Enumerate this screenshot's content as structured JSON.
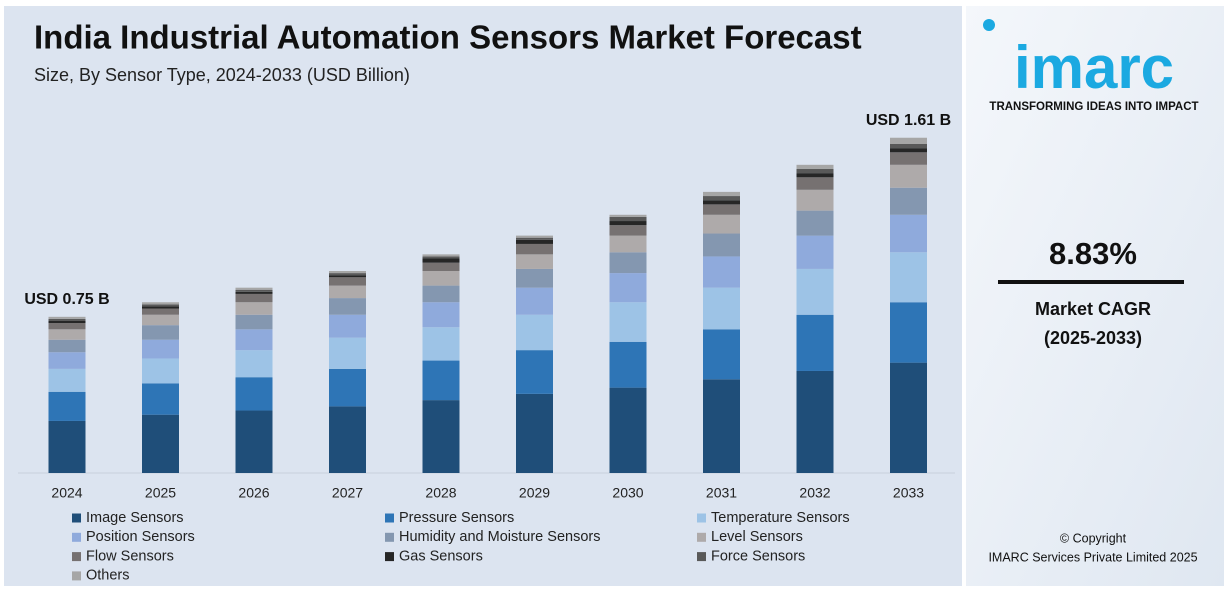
{
  "chart_data": {
    "type": "stacked_bar",
    "title": "India Industrial Automation Sensors Market Forecast",
    "subtitle": "Size, By Sensor Type, 2024-2033 (USD Billion)",
    "categories": [
      "2024",
      "2025",
      "2026",
      "2027",
      "2028",
      "2029",
      "2030",
      "2031",
      "2032",
      "2033"
    ],
    "series": [
      {
        "name": "Image Sensors",
        "color": "#1f4e79",
        "values": [
          0.25,
          0.28,
          0.3,
          0.32,
          0.35,
          0.38,
          0.41,
          0.45,
          0.49,
          0.53
        ]
      },
      {
        "name": "Pressure Sensors",
        "color": "#2e75b6",
        "values": [
          0.14,
          0.15,
          0.16,
          0.18,
          0.19,
          0.21,
          0.22,
          0.24,
          0.27,
          0.29
        ]
      },
      {
        "name": "Temperature Sensors",
        "color": "#9dc3e6",
        "values": [
          0.11,
          0.12,
          0.13,
          0.15,
          0.16,
          0.17,
          0.19,
          0.2,
          0.22,
          0.24
        ]
      },
      {
        "name": "Position Sensors",
        "color": "#8faadc",
        "values": [
          0.08,
          0.09,
          0.1,
          0.11,
          0.12,
          0.13,
          0.14,
          0.15,
          0.16,
          0.18
        ]
      },
      {
        "name": "Humidity and Moisture Sensors",
        "color": "#8497b0",
        "values": [
          0.06,
          0.07,
          0.07,
          0.08,
          0.08,
          0.09,
          0.1,
          0.11,
          0.12,
          0.13
        ]
      },
      {
        "name": "Level Sensors",
        "color": "#aeaaaa",
        "values": [
          0.05,
          0.05,
          0.06,
          0.06,
          0.07,
          0.07,
          0.08,
          0.09,
          0.1,
          0.11
        ]
      },
      {
        "name": "Flow Sensors",
        "color": "#767171",
        "values": [
          0.03,
          0.03,
          0.04,
          0.04,
          0.04,
          0.05,
          0.05,
          0.05,
          0.06,
          0.06
        ]
      },
      {
        "name": "Gas Sensors",
        "color": "#262626",
        "values": [
          0.01,
          0.01,
          0.01,
          0.01,
          0.02,
          0.02,
          0.02,
          0.02,
          0.02,
          0.02
        ]
      },
      {
        "name": "Force Sensors",
        "color": "#595959",
        "values": [
          0.01,
          0.01,
          0.01,
          0.01,
          0.01,
          0.01,
          0.02,
          0.02,
          0.02,
          0.02
        ]
      },
      {
        "name": "Others",
        "color": "#a6a6a6",
        "values": [
          0.01,
          0.01,
          0.01,
          0.01,
          0.01,
          0.01,
          0.01,
          0.02,
          0.02,
          0.03
        ]
      }
    ],
    "annotations": [
      {
        "x": "2024",
        "label": "USD 0.75 B",
        "value": 0.75
      },
      {
        "x": "2033",
        "label": "USD 1.61 B",
        "value": 1.61
      }
    ],
    "ylim": [
      0,
      1.7
    ],
    "legend": "bottom"
  },
  "sidebar": {
    "logo": "imarc",
    "tagline": "TRANSFORMING IDEAS INTO IMPACT",
    "cagr": "8.83%",
    "cagr_label": "Market CAGR",
    "cagr_period": "(2025-2033)",
    "copyright": "© Copyright",
    "company": "IMARC Services Private Limited 2025"
  }
}
